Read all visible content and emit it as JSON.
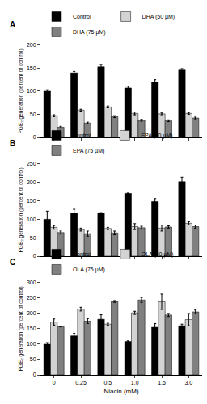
{
  "chart_data": [
    {
      "type": "bar",
      "title": "A",
      "y_label": "PGE₂ generation (percent of control)",
      "categories": [
        "0",
        "0.25",
        "0.5",
        "1.0",
        "1.5",
        "3.0"
      ],
      "series": [
        {
          "name": "Control",
          "color": "#000000",
          "values": [
            100,
            140,
            153,
            107,
            120,
            146
          ],
          "errors": [
            3,
            3,
            5,
            4,
            5,
            3
          ]
        },
        {
          "name": "DHA (50 µM)",
          "color": "#d3d3d3",
          "values": [
            47,
            59,
            66,
            52,
            51,
            52
          ],
          "errors": [
            2,
            2,
            2,
            3,
            2,
            2
          ]
        },
        {
          "name": "DHA (75 µM)",
          "color": "#808080",
          "values": [
            22,
            31,
            45,
            37,
            36,
            42
          ],
          "errors": [
            2,
            2,
            2,
            2,
            2,
            2
          ]
        }
      ],
      "ylim": [
        0,
        200
      ],
      "yticks": [
        0,
        50,
        100,
        150,
        200
      ],
      "grid": false,
      "legend": "top",
      "tick_labels": "y"
    },
    {
      "type": "bar",
      "title": "B",
      "y_label": "PGE₂ generation (percent of control)",
      "categories": [
        "0",
        "0.25",
        "0.5",
        "1.0",
        "1.5",
        "3.0"
      ],
      "series": [
        {
          "name": "Control",
          "color": "#000000",
          "values": [
            100,
            117,
            117,
            170,
            148,
            202
          ],
          "errors": [
            22,
            10,
            1,
            1,
            8,
            12
          ]
        },
        {
          "name": "EPA (50 µM)",
          "color": "#d3d3d3",
          "values": [
            78,
            72,
            75,
            80,
            76,
            89
          ],
          "errors": [
            5,
            4,
            3,
            8,
            8,
            4
          ]
        },
        {
          "name": "EPA (75 µM)",
          "color": "#808080",
          "values": [
            64,
            61,
            63,
            77,
            79,
            80
          ],
          "errors": [
            4,
            7,
            5,
            4,
            3,
            4
          ]
        }
      ],
      "ylim": [
        0,
        250
      ],
      "yticks": [
        0,
        50,
        100,
        150,
        200,
        250
      ],
      "grid": false,
      "legend": "top",
      "tick_labels": "y"
    },
    {
      "type": "bar",
      "title": "C",
      "x_label": "Niacin (mM)",
      "y_label": "PGE₂ generation (percent of control)",
      "categories": [
        "0",
        "0.25",
        "0.5",
        "1.0",
        "1.5",
        "3.0"
      ],
      "series": [
        {
          "name": "Control",
          "color": "#000000",
          "values": [
            100,
            127,
            181,
            109,
            155,
            160
          ],
          "errors": [
            5,
            8,
            15,
            2,
            12,
            5
          ]
        },
        {
          "name": "OLA (50 µM)",
          "color": "#d3d3d3",
          "values": [
            172,
            214,
            165,
            202,
            238,
            180
          ],
          "errors": [
            10,
            6,
            3,
            5,
            25,
            20
          ]
        },
        {
          "name": "OLA (75 µM)",
          "color": "#808080",
          "values": [
            157,
            175,
            239,
            244,
            195,
            205
          ],
          "errors": [
            1,
            8,
            3,
            8,
            5,
            6
          ]
        }
      ],
      "ylim": [
        0,
        300
      ],
      "yticks": [
        0,
        50,
        100,
        150,
        200,
        250,
        300
      ],
      "grid": false,
      "legend": "top",
      "tick_labels": true
    }
  ]
}
